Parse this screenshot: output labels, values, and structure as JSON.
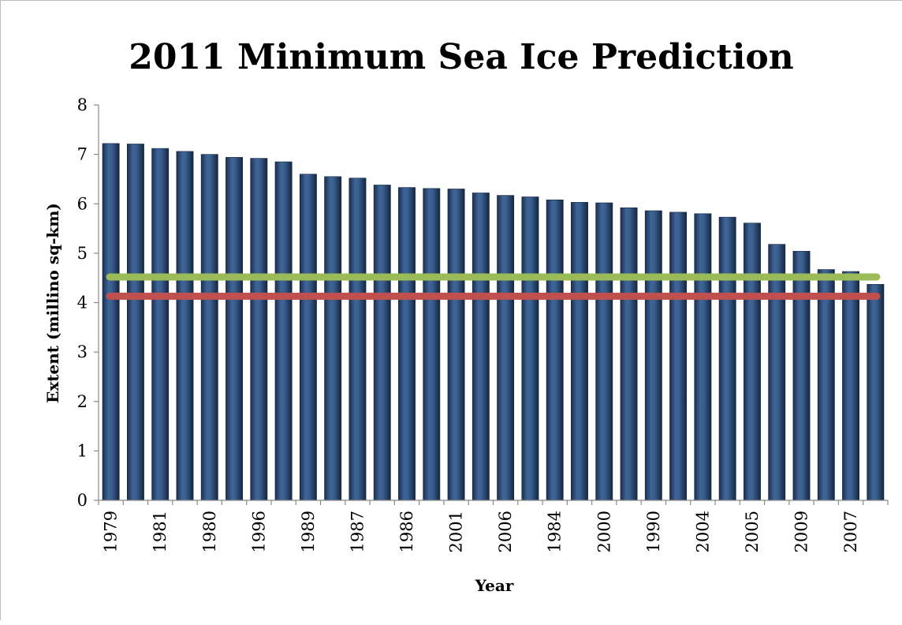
{
  "chart_data": {
    "type": "bar",
    "title": "2011 Minimum Sea Ice Prediction",
    "xlabel": "Year",
    "ylabel": "Extent (millino sq-km)",
    "ylim": [
      0,
      8
    ],
    "yticks": [
      0,
      1,
      2,
      3,
      4,
      5,
      6,
      7,
      8
    ],
    "grid": false,
    "legend": "none",
    "categories": [
      "1979",
      "",
      "1981",
      "",
      "1980",
      "",
      "1996",
      "",
      "1989",
      "",
      "1987",
      "",
      "1986",
      "",
      "2001",
      "",
      "2006",
      "",
      "1984",
      "",
      "2000",
      "",
      "1990",
      "",
      "2004",
      "",
      "2005",
      "",
      "2009",
      "",
      "2007",
      ""
    ],
    "series": [
      {
        "values": [
          7.22,
          7.21,
          7.12,
          7.06,
          7.0,
          6.94,
          6.92,
          6.85,
          6.6,
          6.55,
          6.52,
          6.38,
          6.33,
          6.31,
          6.3,
          6.22,
          6.17,
          6.14,
          6.08,
          6.03,
          6.02,
          5.92,
          5.86,
          5.83,
          5.8,
          5.73,
          5.61,
          5.18,
          5.04,
          4.67,
          4.63,
          4.37
        ],
        "color": "#1f3a63"
      }
    ],
    "reference_lines": [
      {
        "value": 4.52,
        "color": "#9bbb59"
      },
      {
        "value": 4.13,
        "color": "#c0504d"
      }
    ]
  }
}
